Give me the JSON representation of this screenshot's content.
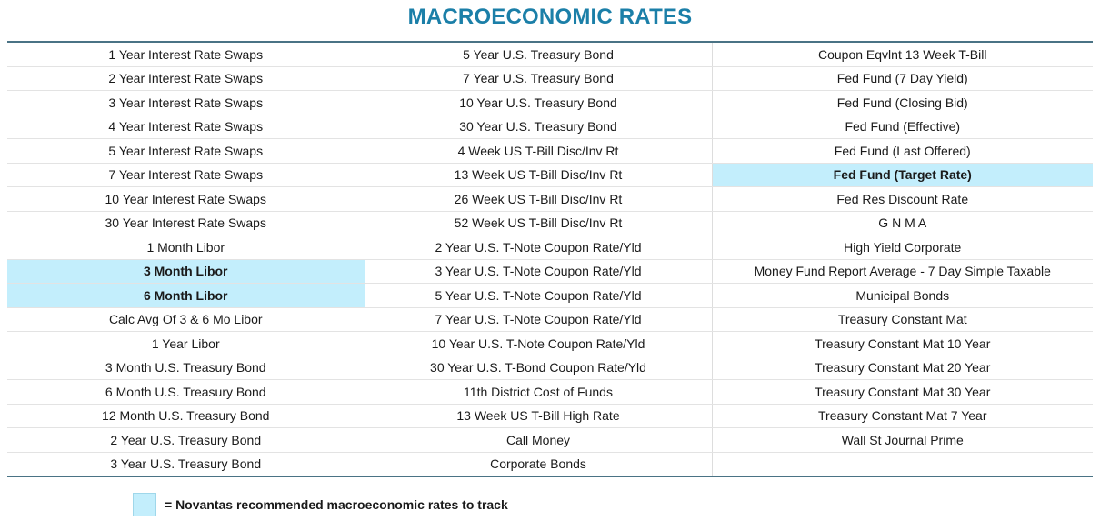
{
  "title": "MACROECONOMIC RATES",
  "highlight_color": "#c3eefc",
  "accent_color": "#1b7fa8",
  "rows": [
    [
      {
        "text": "1 Year Interest Rate Swaps"
      },
      {
        "text": "5 Year U.S. Treasury Bond"
      },
      {
        "text": "Coupon Eqvlnt 13 Week T-Bill"
      }
    ],
    [
      {
        "text": "2 Year Interest Rate Swaps"
      },
      {
        "text": "7 Year U.S. Treasury Bond"
      },
      {
        "text": "Fed Fund (7 Day Yield)"
      }
    ],
    [
      {
        "text": "3 Year Interest Rate Swaps"
      },
      {
        "text": "10 Year U.S. Treasury Bond"
      },
      {
        "text": "Fed Fund (Closing Bid)"
      }
    ],
    [
      {
        "text": "4 Year Interest Rate Swaps"
      },
      {
        "text": "30 Year U.S. Treasury Bond"
      },
      {
        "text": "Fed Fund (Effective)"
      }
    ],
    [
      {
        "text": "5 Year Interest Rate Swaps"
      },
      {
        "text": "4 Week US T-Bill Disc/Inv Rt"
      },
      {
        "text": "Fed Fund (Last Offered)"
      }
    ],
    [
      {
        "text": "7 Year Interest Rate Swaps"
      },
      {
        "text": "13 Week US T-Bill Disc/Inv Rt"
      },
      {
        "text": "Fed Fund (Target Rate)",
        "highlight": true
      }
    ],
    [
      {
        "text": "10 Year Interest Rate Swaps"
      },
      {
        "text": "26 Week US T-Bill Disc/Inv Rt"
      },
      {
        "text": "Fed Res Discount Rate"
      }
    ],
    [
      {
        "text": "30 Year Interest Rate Swaps"
      },
      {
        "text": "52 Week US T-Bill Disc/Inv Rt"
      },
      {
        "text": "G N M A"
      }
    ],
    [
      {
        "text": "1 Month Libor"
      },
      {
        "text": "2 Year U.S. T-Note Coupon Rate/Yld"
      },
      {
        "text": "High Yield Corporate"
      }
    ],
    [
      {
        "text": "3 Month Libor",
        "highlight": true
      },
      {
        "text": "3 Year U.S. T-Note Coupon Rate/Yld"
      },
      {
        "text": "Money Fund Report Average - 7 Day Simple Taxable"
      }
    ],
    [
      {
        "text": "6 Month Libor",
        "highlight": true
      },
      {
        "text": "5 Year U.S. T-Note Coupon Rate/Yld"
      },
      {
        "text": "Municipal Bonds"
      }
    ],
    [
      {
        "text": "Calc Avg Of 3 & 6 Mo Libor"
      },
      {
        "text": "7 Year U.S. T-Note Coupon Rate/Yld"
      },
      {
        "text": "Treasury Constant Mat"
      }
    ],
    [
      {
        "text": "1 Year Libor"
      },
      {
        "text": "10 Year U.S. T-Note Coupon Rate/Yld"
      },
      {
        "text": "Treasury Constant Mat 10 Year"
      }
    ],
    [
      {
        "text": "3 Month U.S. Treasury Bond"
      },
      {
        "text": "30 Year U.S. T-Bond Coupon Rate/Yld"
      },
      {
        "text": "Treasury Constant Mat 20 Year"
      }
    ],
    [
      {
        "text": "6 Month U.S. Treasury Bond"
      },
      {
        "text": "11th District Cost of Funds"
      },
      {
        "text": "Treasury Constant Mat 30 Year"
      }
    ],
    [
      {
        "text": "12 Month U.S. Treasury Bond"
      },
      {
        "text": "13 Week US T-Bill High Rate"
      },
      {
        "text": "Treasury Constant Mat 7 Year"
      }
    ],
    [
      {
        "text": "2 Year U.S. Treasury Bond"
      },
      {
        "text": "Call Money"
      },
      {
        "text": "Wall St Journal Prime"
      }
    ],
    [
      {
        "text": "3 Year U.S. Treasury Bond"
      },
      {
        "text": "Corporate Bonds"
      },
      {
        "text": ""
      }
    ]
  ],
  "legend": {
    "text": "= Novantas recommended macroeconomic rates to track"
  }
}
